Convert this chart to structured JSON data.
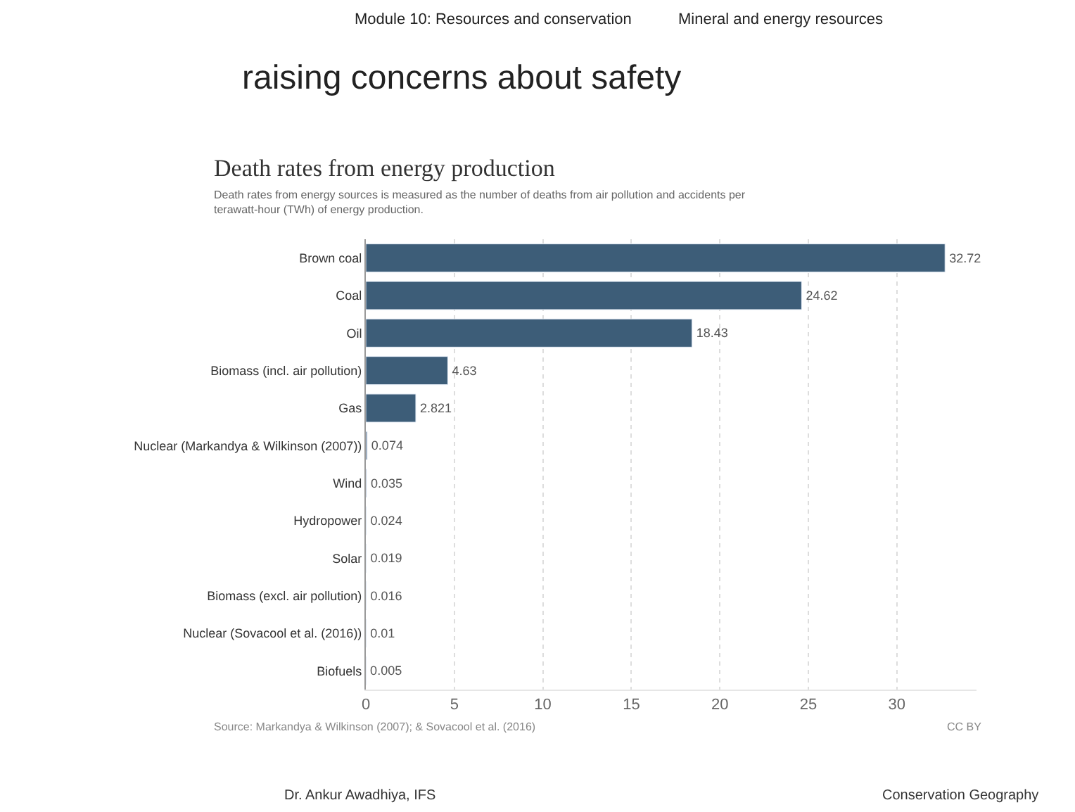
{
  "chart_data": {
    "type": "bar",
    "orientation": "horizontal",
    "title": "Death rates from energy production",
    "subtitle": "Death rates from energy sources is measured as the number of deaths from air pollution and accidents per terawatt-hour (TWh) of energy production.",
    "categories": [
      "Brown coal",
      "Coal",
      "Oil",
      "Biomass (incl. air pollution)",
      "Gas",
      "Nuclear (Markandya & Wilkinson (2007))",
      "Wind",
      "Hydropower",
      "Solar",
      "Biomass (excl. air pollution)",
      "Nuclear (Sovacool et al. (2016))",
      "Biofuels"
    ],
    "values": [
      32.72,
      24.62,
      18.43,
      4.63,
      2.821,
      0.074,
      0.035,
      0.024,
      0.019,
      0.016,
      0.01,
      0.005
    ],
    "color": "#3d5d78",
    "data_labels": true,
    "xlim": [
      0,
      34.5
    ],
    "xticks": [
      0,
      5,
      10,
      15,
      20,
      25,
      30
    ],
    "grid": "x",
    "annotations": [
      "Module 10: Resources and conservation",
      "Mineral and energy resources",
      "raising concerns about safety",
      "Source: Markandya & Wilkinson (2007); & Sovacool et al. (2016)",
      "CC BY",
      "Dr. Ankur Awadhiya, IFS",
      "Conservation Geography"
    ]
  }
}
